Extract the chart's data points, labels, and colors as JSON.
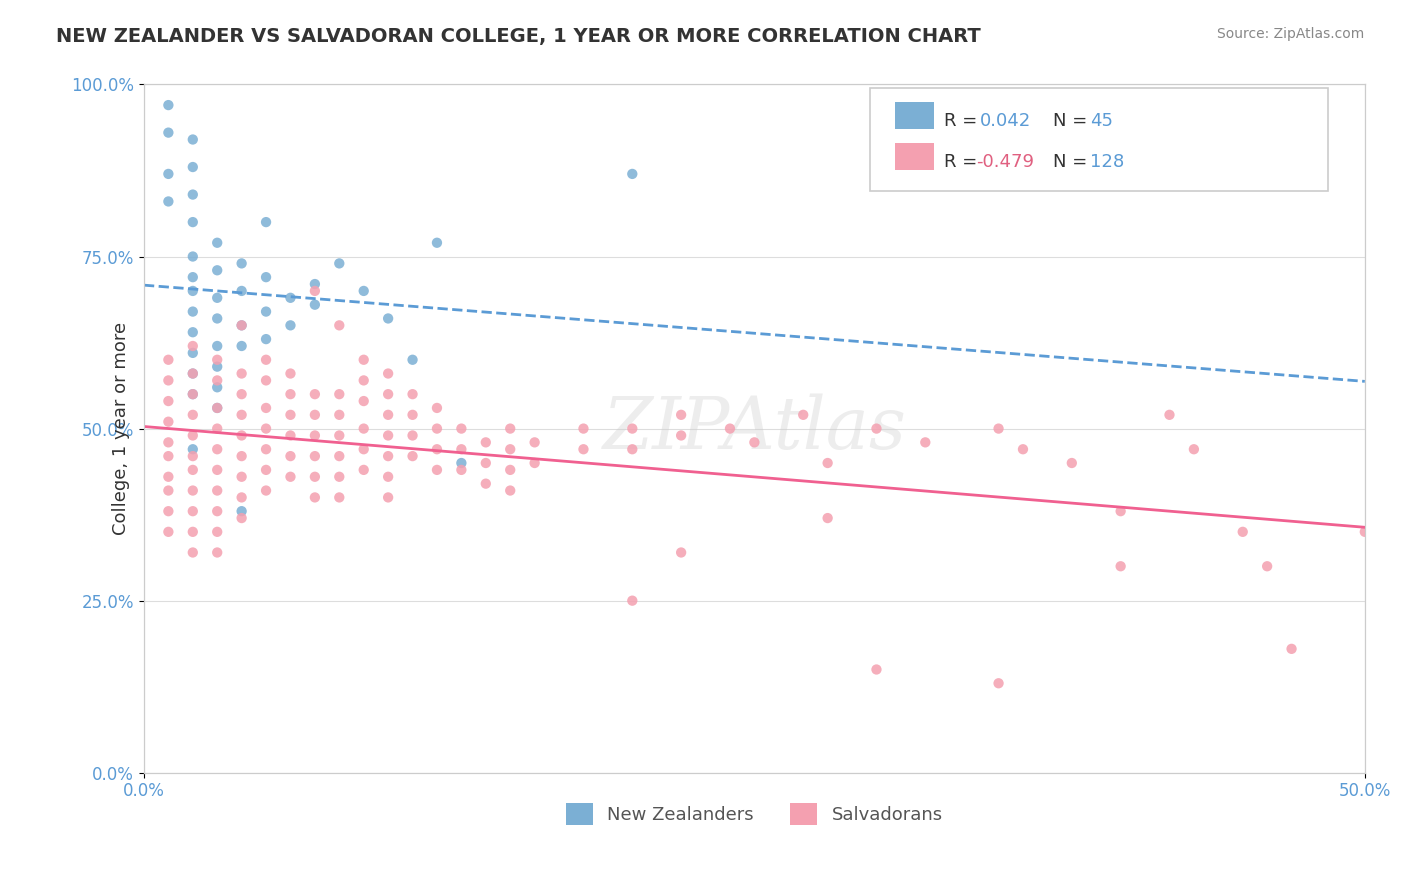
{
  "title": "NEW ZEALANDER VS SALVADORAN COLLEGE, 1 YEAR OR MORE CORRELATION CHART",
  "source_text": "Source: ZipAtlas.com",
  "ylabel": "College, 1 year or more",
  "xlim": [
    0.0,
    0.5
  ],
  "ylim": [
    0.0,
    1.0
  ],
  "yticks": [
    0.0,
    0.25,
    0.5,
    0.75,
    1.0
  ],
  "ytick_labels": [
    "0.0%",
    "25.0%",
    "50.0%",
    "75.0%",
    "100.0%"
  ],
  "xtick_labels": [
    "0.0%",
    "50.0%"
  ],
  "nz_color": "#7bafd4",
  "sal_color": "#f4a0b0",
  "nz_line_color": "#5b9bd5",
  "sal_line_color": "#f06090",
  "blue_text_color": "#5b9bd5",
  "pink_text_color": "#e06080",
  "dark_text_color": "#333333",
  "grid_color": "#dddddd",
  "spine_color": "#cccccc",
  "source_color": "#888888",
  "nz_scatter": [
    [
      0.01,
      0.97
    ],
    [
      0.01,
      0.93
    ],
    [
      0.01,
      0.87
    ],
    [
      0.01,
      0.83
    ],
    [
      0.02,
      0.92
    ],
    [
      0.02,
      0.88
    ],
    [
      0.02,
      0.84
    ],
    [
      0.02,
      0.8
    ],
    [
      0.02,
      0.75
    ],
    [
      0.02,
      0.72
    ],
    [
      0.02,
      0.7
    ],
    [
      0.02,
      0.67
    ],
    [
      0.02,
      0.64
    ],
    [
      0.02,
      0.61
    ],
    [
      0.02,
      0.58
    ],
    [
      0.02,
      0.55
    ],
    [
      0.03,
      0.77
    ],
    [
      0.03,
      0.73
    ],
    [
      0.03,
      0.69
    ],
    [
      0.03,
      0.66
    ],
    [
      0.03,
      0.62
    ],
    [
      0.03,
      0.59
    ],
    [
      0.03,
      0.56
    ],
    [
      0.03,
      0.53
    ],
    [
      0.04,
      0.74
    ],
    [
      0.04,
      0.7
    ],
    [
      0.04,
      0.65
    ],
    [
      0.04,
      0.62
    ],
    [
      0.05,
      0.8
    ],
    [
      0.05,
      0.72
    ],
    [
      0.05,
      0.67
    ],
    [
      0.05,
      0.63
    ],
    [
      0.06,
      0.69
    ],
    [
      0.06,
      0.65
    ],
    [
      0.07,
      0.71
    ],
    [
      0.07,
      0.68
    ],
    [
      0.08,
      0.74
    ],
    [
      0.09,
      0.7
    ],
    [
      0.1,
      0.66
    ],
    [
      0.11,
      0.6
    ],
    [
      0.12,
      0.77
    ],
    [
      0.13,
      0.45
    ],
    [
      0.2,
      0.87
    ],
    [
      0.02,
      0.47
    ],
    [
      0.04,
      0.38
    ]
  ],
  "sal_scatter": [
    [
      0.01,
      0.6
    ],
    [
      0.01,
      0.57
    ],
    [
      0.01,
      0.54
    ],
    [
      0.01,
      0.51
    ],
    [
      0.01,
      0.48
    ],
    [
      0.01,
      0.46
    ],
    [
      0.01,
      0.43
    ],
    [
      0.01,
      0.41
    ],
    [
      0.01,
      0.38
    ],
    [
      0.01,
      0.35
    ],
    [
      0.02,
      0.62
    ],
    [
      0.02,
      0.58
    ],
    [
      0.02,
      0.55
    ],
    [
      0.02,
      0.52
    ],
    [
      0.02,
      0.49
    ],
    [
      0.02,
      0.46
    ],
    [
      0.02,
      0.44
    ],
    [
      0.02,
      0.41
    ],
    [
      0.02,
      0.38
    ],
    [
      0.02,
      0.35
    ],
    [
      0.02,
      0.32
    ],
    [
      0.03,
      0.6
    ],
    [
      0.03,
      0.57
    ],
    [
      0.03,
      0.53
    ],
    [
      0.03,
      0.5
    ],
    [
      0.03,
      0.47
    ],
    [
      0.03,
      0.44
    ],
    [
      0.03,
      0.41
    ],
    [
      0.03,
      0.38
    ],
    [
      0.03,
      0.35
    ],
    [
      0.03,
      0.32
    ],
    [
      0.04,
      0.65
    ],
    [
      0.04,
      0.58
    ],
    [
      0.04,
      0.55
    ],
    [
      0.04,
      0.52
    ],
    [
      0.04,
      0.49
    ],
    [
      0.04,
      0.46
    ],
    [
      0.04,
      0.43
    ],
    [
      0.04,
      0.4
    ],
    [
      0.04,
      0.37
    ],
    [
      0.05,
      0.6
    ],
    [
      0.05,
      0.57
    ],
    [
      0.05,
      0.53
    ],
    [
      0.05,
      0.5
    ],
    [
      0.05,
      0.47
    ],
    [
      0.05,
      0.44
    ],
    [
      0.05,
      0.41
    ],
    [
      0.06,
      0.58
    ],
    [
      0.06,
      0.55
    ],
    [
      0.06,
      0.52
    ],
    [
      0.06,
      0.49
    ],
    [
      0.06,
      0.46
    ],
    [
      0.06,
      0.43
    ],
    [
      0.07,
      0.7
    ],
    [
      0.07,
      0.55
    ],
    [
      0.07,
      0.52
    ],
    [
      0.07,
      0.49
    ],
    [
      0.07,
      0.46
    ],
    [
      0.07,
      0.43
    ],
    [
      0.07,
      0.4
    ],
    [
      0.08,
      0.65
    ],
    [
      0.08,
      0.55
    ],
    [
      0.08,
      0.52
    ],
    [
      0.08,
      0.49
    ],
    [
      0.08,
      0.46
    ],
    [
      0.08,
      0.43
    ],
    [
      0.08,
      0.4
    ],
    [
      0.09,
      0.6
    ],
    [
      0.09,
      0.57
    ],
    [
      0.09,
      0.54
    ],
    [
      0.09,
      0.5
    ],
    [
      0.09,
      0.47
    ],
    [
      0.09,
      0.44
    ],
    [
      0.1,
      0.58
    ],
    [
      0.1,
      0.55
    ],
    [
      0.1,
      0.52
    ],
    [
      0.1,
      0.49
    ],
    [
      0.1,
      0.46
    ],
    [
      0.1,
      0.43
    ],
    [
      0.1,
      0.4
    ],
    [
      0.11,
      0.55
    ],
    [
      0.11,
      0.52
    ],
    [
      0.11,
      0.49
    ],
    [
      0.11,
      0.46
    ],
    [
      0.12,
      0.53
    ],
    [
      0.12,
      0.5
    ],
    [
      0.12,
      0.47
    ],
    [
      0.12,
      0.44
    ],
    [
      0.13,
      0.5
    ],
    [
      0.13,
      0.47
    ],
    [
      0.13,
      0.44
    ],
    [
      0.14,
      0.48
    ],
    [
      0.14,
      0.45
    ],
    [
      0.14,
      0.42
    ],
    [
      0.15,
      0.5
    ],
    [
      0.15,
      0.47
    ],
    [
      0.15,
      0.44
    ],
    [
      0.15,
      0.41
    ],
    [
      0.16,
      0.48
    ],
    [
      0.16,
      0.45
    ],
    [
      0.18,
      0.5
    ],
    [
      0.18,
      0.47
    ],
    [
      0.2,
      0.5
    ],
    [
      0.2,
      0.47
    ],
    [
      0.22,
      0.52
    ],
    [
      0.22,
      0.49
    ],
    [
      0.24,
      0.5
    ],
    [
      0.25,
      0.48
    ],
    [
      0.27,
      0.52
    ],
    [
      0.28,
      0.45
    ],
    [
      0.3,
      0.5
    ],
    [
      0.32,
      0.48
    ],
    [
      0.35,
      0.5
    ],
    [
      0.36,
      0.47
    ],
    [
      0.38,
      0.45
    ],
    [
      0.4,
      0.38
    ],
    [
      0.42,
      0.52
    ],
    [
      0.43,
      0.47
    ],
    [
      0.45,
      0.35
    ],
    [
      0.46,
      0.3
    ],
    [
      0.47,
      0.18
    ],
    [
      0.2,
      0.25
    ],
    [
      0.3,
      0.15
    ],
    [
      0.35,
      0.13
    ],
    [
      0.22,
      0.32
    ],
    [
      0.28,
      0.37
    ],
    [
      0.4,
      0.3
    ],
    [
      0.5,
      0.35
    ]
  ]
}
